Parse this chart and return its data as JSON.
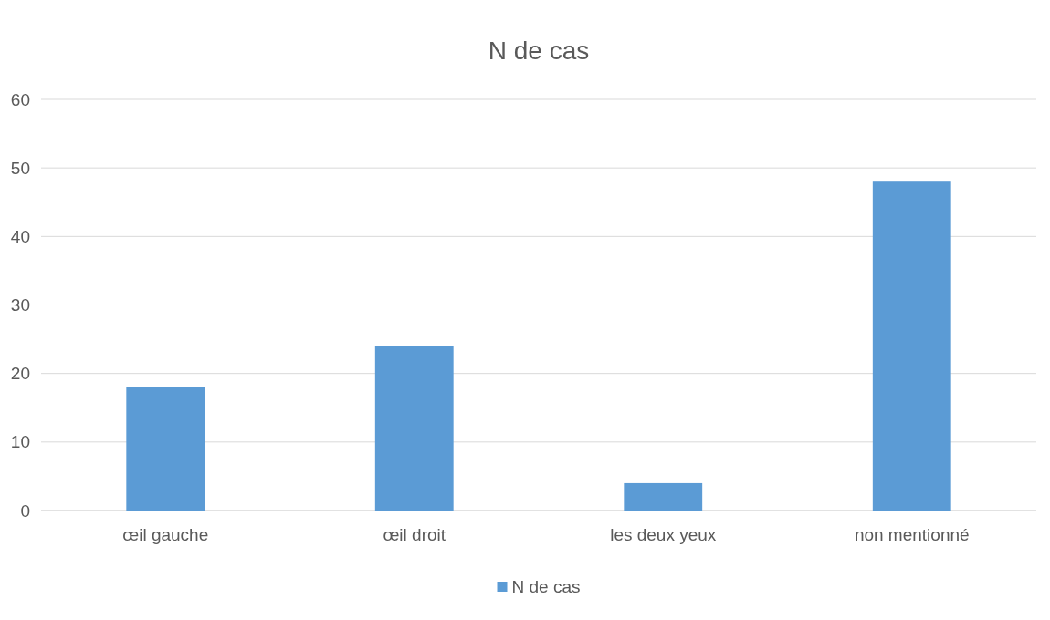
{
  "chart_data": {
    "type": "bar",
    "title": "N de cas",
    "categories": [
      "œil gauche",
      "œil droit",
      "les deux yeux",
      "non mentionné"
    ],
    "series": [
      {
        "name": "N de cas",
        "color": "#5b9bd5",
        "values": [
          18,
          24,
          4,
          48
        ]
      }
    ],
    "ylim": [
      0,
      60
    ],
    "yticks": [
      0,
      10,
      20,
      30,
      40,
      50,
      60
    ],
    "grid": "y",
    "legend": "bottom"
  }
}
